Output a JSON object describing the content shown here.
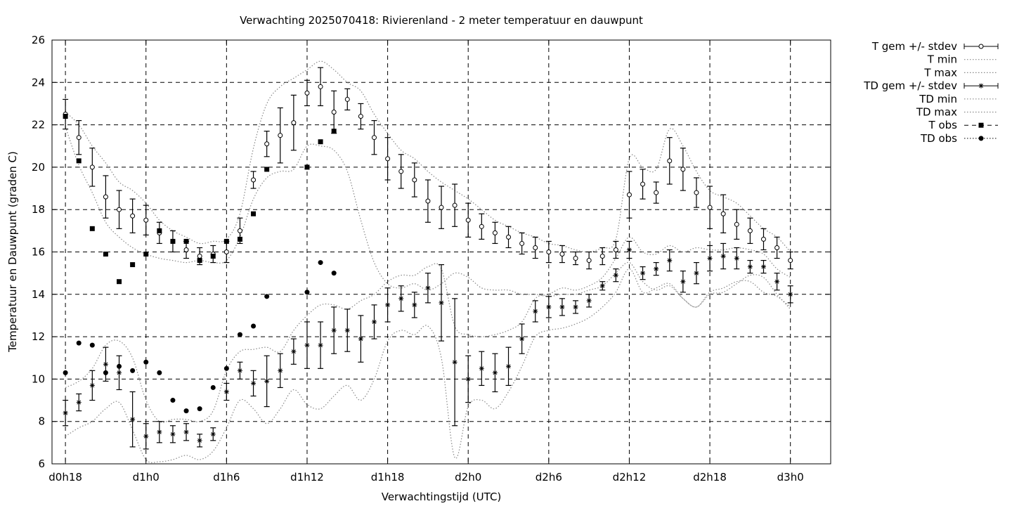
{
  "chart_data": {
    "type": "line",
    "title": "Verwachting 2025070418: Rivierenland - 2 meter temperatuur en dauwpunt",
    "xlabel": "Verwachtingstijd (UTC)",
    "ylabel": "Temperatuur en Dauwpunt (graden C)",
    "xlim": [
      -0.5,
      28.5
    ],
    "ylim": [
      6,
      26
    ],
    "x_ticks": [
      {
        "x": 0,
        "label": "d0h18"
      },
      {
        "x": 3,
        "label": "d1h0"
      },
      {
        "x": 6,
        "label": "d1h6"
      },
      {
        "x": 9,
        "label": "d1h12"
      },
      {
        "x": 12,
        "label": "d1h18"
      },
      {
        "x": 15,
        "label": "d2h0"
      },
      {
        "x": 18,
        "label": "d2h6"
      },
      {
        "x": 21,
        "label": "d2h12"
      },
      {
        "x": 24,
        "label": "d2h18"
      },
      {
        "x": 27,
        "label": "d3h0"
      }
    ],
    "y_ticks": [
      6,
      8,
      10,
      12,
      14,
      16,
      18,
      20,
      22,
      24,
      26
    ],
    "grid": true,
    "legend_position": "outside-right-top",
    "x": [
      0,
      0.5,
      1,
      1.5,
      2,
      2.5,
      3,
      3.5,
      4,
      4.5,
      5,
      5.5,
      6,
      6.5,
      7,
      7.5,
      8,
      8.5,
      9,
      9.5,
      10,
      10.5,
      11,
      11.5,
      12,
      12.5,
      13,
      13.5,
      14,
      14.5,
      15,
      15.5,
      16,
      16.5,
      17,
      17.5,
      18,
      18.5,
      19,
      19.5,
      20,
      20.5,
      21,
      21.5,
      22,
      22.5,
      23,
      23.5,
      24,
      24.5,
      25,
      25.5,
      26,
      26.5,
      27
    ],
    "series": [
      {
        "name": "T gem +/- stdev",
        "marker": "open-circle",
        "values": [
          22.5,
          21.4,
          20.0,
          18.6,
          18.0,
          17.7,
          17.5,
          16.9,
          16.5,
          16.1,
          15.8,
          15.9,
          16.0,
          17.0,
          19.4,
          21.1,
          21.5,
          22.1,
          23.5,
          23.8,
          22.6,
          23.2,
          22.4,
          21.4,
          20.4,
          19.8,
          19.4,
          18.4,
          18.1,
          18.2,
          17.5,
          17.2,
          16.9,
          16.7,
          16.4,
          16.2,
          16.0,
          15.9,
          15.7,
          15.6,
          15.8,
          16.1,
          18.7,
          19.2,
          18.8,
          20.3,
          19.9,
          18.8,
          18.1,
          17.8,
          17.3,
          17.0,
          16.6,
          16.2,
          15.6
        ],
        "stdev": [
          0.7,
          0.8,
          0.9,
          1.0,
          0.9,
          0.8,
          0.7,
          0.5,
          0.5,
          0.4,
          0.4,
          0.4,
          0.5,
          0.6,
          0.4,
          0.6,
          1.3,
          1.3,
          0.6,
          0.9,
          1.0,
          0.5,
          0.6,
          0.8,
          1.0,
          0.8,
          0.8,
          1.0,
          1.0,
          1.0,
          0.8,
          0.6,
          0.5,
          0.5,
          0.5,
          0.5,
          0.5,
          0.4,
          0.3,
          0.4,
          0.4,
          0.4,
          1.1,
          0.7,
          0.5,
          1.1,
          1.0,
          0.7,
          1.0,
          0.9,
          0.7,
          0.6,
          0.5,
          0.5,
          0.4
        ]
      },
      {
        "name": "T min",
        "values": [
          21.9,
          20.1,
          18.8,
          17.4,
          16.7,
          16.2,
          15.9,
          15.7,
          15.6,
          15.5,
          15.6,
          15.5,
          15.6,
          16.7,
          18.5,
          19.5,
          19.8,
          19.9,
          21.0,
          21.0,
          20.8,
          19.8,
          17.5,
          15.5,
          14.5,
          14.3,
          14.5,
          14.2,
          14.5,
          15.0,
          14.8,
          14.3,
          14.2,
          14.2,
          14.0,
          14.0,
          13.9,
          14.0,
          14.0,
          14.2,
          14.4,
          15.0,
          15.5,
          14.6,
          14.2,
          14.4,
          13.8,
          13.4,
          14.1,
          14.3,
          14.6,
          14.6,
          14.1,
          13.9,
          13.4
        ]
      },
      {
        "name": "T max",
        "values": [
          22.6,
          22.0,
          21.0,
          20.2,
          19.3,
          18.9,
          18.3,
          17.5,
          17.0,
          16.7,
          16.4,
          16.5,
          16.6,
          17.8,
          20.9,
          23.0,
          23.8,
          24.2,
          24.6,
          25.0,
          24.6,
          24.0,
          23.6,
          22.5,
          21.6,
          20.8,
          20.4,
          19.8,
          19.3,
          18.9,
          18.5,
          18.0,
          17.5,
          17.2,
          16.9,
          16.7,
          16.4,
          16.3,
          16.1,
          16.0,
          16.2,
          16.6,
          20.4,
          20.0,
          19.9,
          21.8,
          21.0,
          19.8,
          18.9,
          18.6,
          18.3,
          17.7,
          17.1,
          16.7,
          16.0
        ]
      },
      {
        "name": "TD gem +/- stdev",
        "marker": "asterisk",
        "values": [
          8.4,
          8.9,
          9.7,
          10.7,
          10.3,
          8.1,
          7.3,
          7.5,
          7.4,
          7.5,
          7.1,
          7.4,
          9.4,
          10.4,
          9.8,
          9.9,
          10.4,
          11.3,
          11.6,
          11.6,
          12.3,
          12.3,
          11.9,
          12.7,
          13.5,
          13.8,
          13.5,
          14.3,
          13.6,
          10.8,
          10.0,
          10.5,
          10.3,
          10.6,
          11.9,
          13.2,
          13.4,
          13.4,
          13.4,
          13.7,
          14.4,
          14.9,
          16.1,
          15.0,
          15.2,
          15.6,
          14.6,
          15.0,
          15.7,
          15.8,
          15.7,
          15.3,
          15.3,
          14.6,
          14.0
        ]
      },
      {
        "name": "TD min",
        "values": [
          7.3,
          7.7,
          8.0,
          8.6,
          8.9,
          7.6,
          6.2,
          6.1,
          6.2,
          6.4,
          6.2,
          6.6,
          7.7,
          9.0,
          8.6,
          7.9,
          8.6,
          9.5,
          8.8,
          8.6,
          9.2,
          9.7,
          9.0,
          10.0,
          11.8,
          12.3,
          12.1,
          12.5,
          11.0,
          6.3,
          8.7,
          9.0,
          8.6,
          9.4,
          10.6,
          12.0,
          12.3,
          12.4,
          12.6,
          12.9,
          13.4,
          14.1,
          15.2,
          14.1,
          14.3,
          14.5,
          13.8,
          13.4,
          14.0,
          14.1,
          14.5,
          14.9,
          14.8,
          14.0,
          13.3
        ]
      },
      {
        "name": "TD max",
        "values": [
          9.6,
          9.9,
          10.5,
          11.6,
          11.8,
          11.0,
          9.0,
          8.0,
          8.1,
          8.1,
          8.0,
          8.5,
          10.4,
          11.3,
          11.4,
          11.5,
          11.3,
          12.3,
          13.0,
          13.5,
          13.5,
          13.3,
          13.7,
          14.0,
          14.6,
          14.9,
          14.9,
          15.3,
          15.2,
          12.5,
          12.1,
          12.0,
          12.1,
          12.3,
          12.7,
          13.8,
          14.0,
          14.3,
          14.2,
          14.4,
          14.8,
          15.7,
          16.7,
          16.0,
          15.9,
          16.3,
          16.0,
          16.2,
          16.1,
          16.1,
          16.2,
          16.1,
          15.9,
          15.2,
          14.8
        ]
      },
      {
        "name": "TD gem stdev",
        "values": [
          0.6,
          0.4,
          0.7,
          0.8,
          0.8,
          1.3,
          0.6,
          0.5,
          0.4,
          0.4,
          0.3,
          0.3,
          0.4,
          0.4,
          0.6,
          1.2,
          0.8,
          0.6,
          1.1,
          1.1,
          1.1,
          1.0,
          1.1,
          0.8,
          0.8,
          0.6,
          0.6,
          0.7,
          1.8,
          3.0,
          1.1,
          0.8,
          0.9,
          0.9,
          0.7,
          0.5,
          0.5,
          0.4,
          0.3,
          0.3,
          0.2,
          0.3,
          0.4,
          0.3,
          0.3,
          0.5,
          0.5,
          0.5,
          0.6,
          0.6,
          0.5,
          0.3,
          0.3,
          0.4,
          0.4
        ]
      }
    ],
    "observations": [
      {
        "name": "T obs",
        "marker": "filled-square",
        "x": [
          0,
          1,
          2,
          3,
          4,
          5,
          6,
          7,
          8,
          9,
          10,
          11,
          12,
          13
        ],
        "values": [
          22.4,
          20.3,
          17.1,
          15.9,
          14.6,
          15.4,
          15.9,
          17.0,
          16.5,
          16.5,
          15.6,
          15.8,
          16.5,
          16.6
        ],
        "x_late": [
          7,
          8,
          9,
          10,
          11
        ],
        "values_late": [
          17.8,
          19.9,
          20.0,
          21.2,
          21.7
        ]
      },
      {
        "name": "TD obs",
        "marker": "filled-circle",
        "x": [
          0,
          0.5,
          1,
          1.5,
          2,
          2.5,
          3,
          3.5,
          4,
          4.5,
          5,
          5.5,
          6,
          6.5,
          7,
          7.5,
          8,
          8.5,
          9,
          9.5,
          10
        ],
        "values": [
          10.3,
          11.7,
          11.6,
          10.3,
          10.6,
          10.4,
          10.8,
          10.3,
          9.0,
          8.5,
          8.6,
          9.6,
          10.5,
          12.1,
          12.5,
          13.9,
          null,
          null,
          14.1,
          15.5,
          15.0
        ]
      }
    ],
    "legend": [
      {
        "label": "T gem +/- stdev",
        "style": "errorbar-open-circle"
      },
      {
        "label": "T min",
        "style": "dotted"
      },
      {
        "label": "T max",
        "style": "dotted"
      },
      {
        "label": "TD gem +/- stdev",
        "style": "errorbar-asterisk"
      },
      {
        "label": "TD min",
        "style": "dotted"
      },
      {
        "label": "TD max",
        "style": "dotted"
      },
      {
        "label": "T obs",
        "style": "dash-filled-square"
      },
      {
        "label": "TD obs",
        "style": "dotted-filled-circle"
      }
    ]
  }
}
